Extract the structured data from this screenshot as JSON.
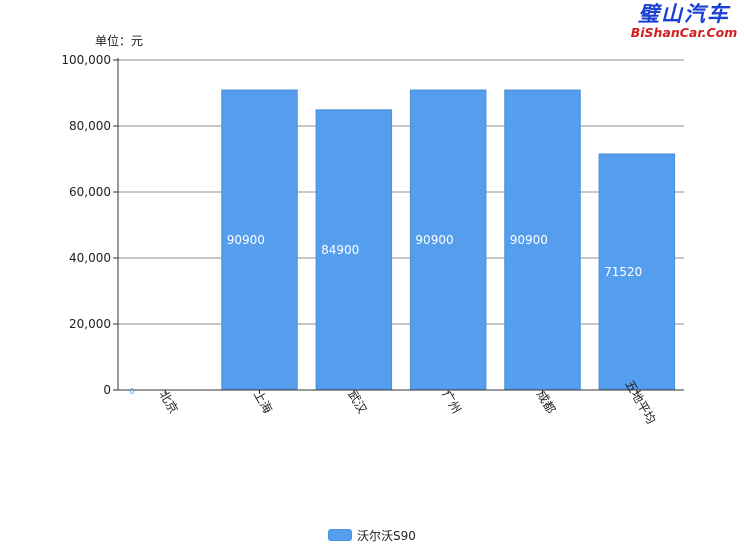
{
  "brand": {
    "name_cn": "璧山汽车",
    "name_en": "BiShanCar.Com",
    "color_cn": "#1a3fd6",
    "color_en": "#d02020"
  },
  "unit_label": "单位：元",
  "chart_data": {
    "type": "bar",
    "categories": [
      "北京",
      "上海",
      "武汉",
      "广州",
      "成都",
      "五地平均"
    ],
    "series": [
      {
        "name": "沃尔沃S90",
        "values": [
          0,
          90900,
          84900,
          90900,
          90900,
          71520
        ]
      }
    ],
    "data_labels": [
      "0",
      "90900",
      "84900",
      "90900",
      "90900",
      "71520"
    ],
    "ylim": [
      0,
      100000
    ],
    "yticks": [
      0,
      20000,
      40000,
      60000,
      80000,
      100000
    ],
    "ytick_labels": [
      "0",
      "20,000",
      "40,000",
      "60,000",
      "80,000",
      "100,000"
    ],
    "bar_color": "#559ded",
    "grid": true,
    "legend_position": "bottom"
  }
}
